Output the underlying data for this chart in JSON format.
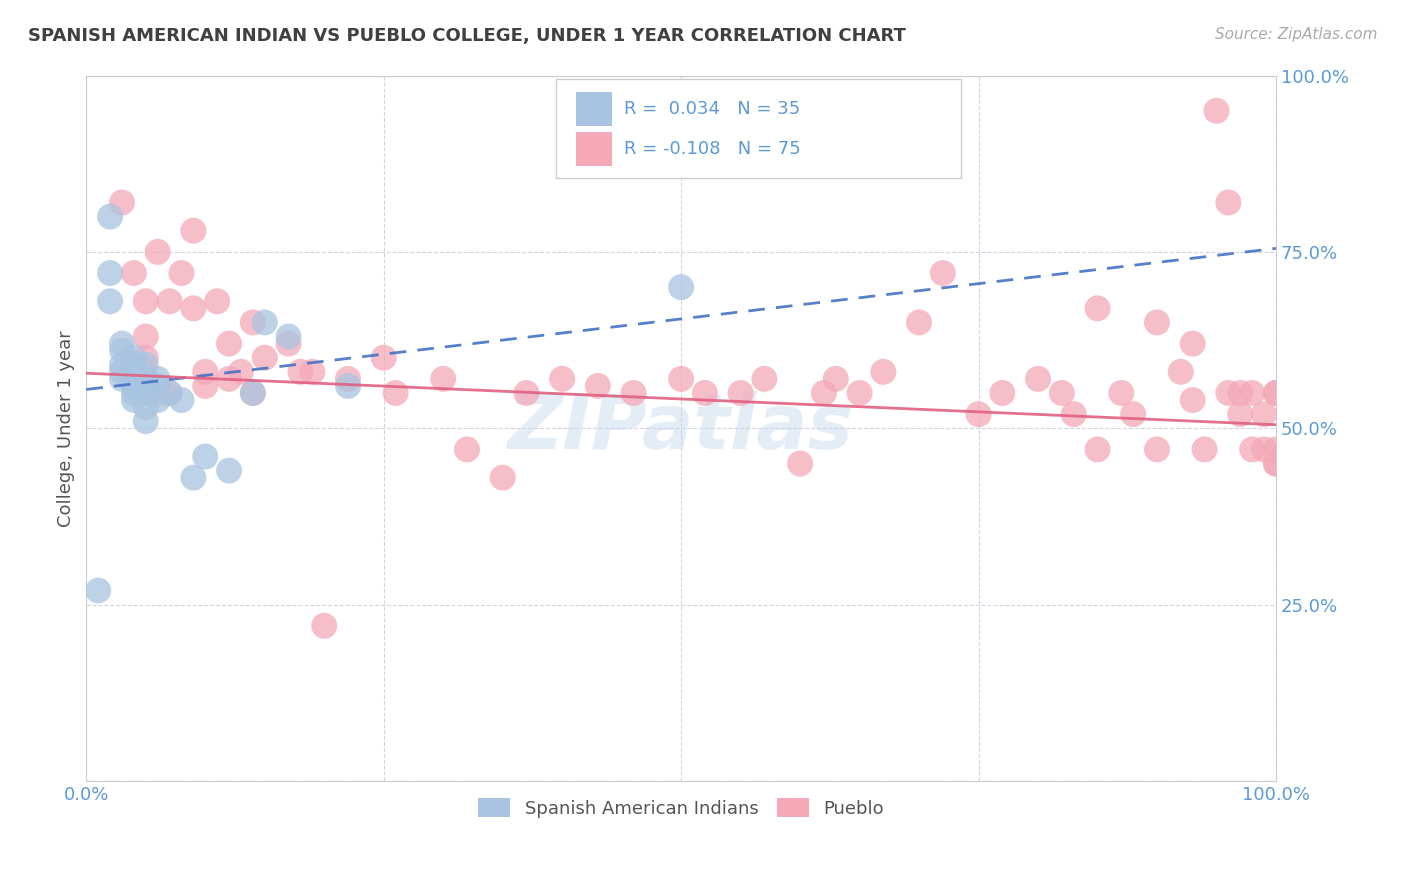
{
  "title": "SPANISH AMERICAN INDIAN VS PUEBLO COLLEGE, UNDER 1 YEAR CORRELATION CHART",
  "source": "Source: ZipAtlas.com",
  "ylabel": "College, Under 1 year",
  "r_blue": 0.034,
  "n_blue": 35,
  "r_pink": -0.108,
  "n_pink": 75,
  "legend_labels": [
    "Spanish American Indians",
    "Pueblo"
  ],
  "watermark": "ZIPatlas",
  "xlim": [
    0.0,
    1.0
  ],
  "ylim": [
    0.0,
    1.0
  ],
  "xtick_positions": [
    0.0,
    0.25,
    0.5,
    0.75,
    1.0
  ],
  "ytick_positions": [
    0.0,
    0.25,
    0.5,
    0.75,
    1.0
  ],
  "xtick_labels": [
    "0.0%",
    "",
    "",
    "",
    "100.0%"
  ],
  "ytick_labels": [
    "",
    "25.0%",
    "50.0%",
    "75.0%",
    "100.0%"
  ],
  "blue_color": "#a8c4e0",
  "pink_color": "#f4a8b8",
  "blue_line_color": "#4472c4",
  "pink_line_color": "#e06080",
  "title_color": "#404040",
  "tick_label_color": "#5b9bd5",
  "grid_color": "#d0d0e0",
  "blue_scatter_x": [
    0.01,
    0.02,
    0.02,
    0.03,
    0.03,
    0.03,
    0.03,
    0.03,
    0.04,
    0.04,
    0.04,
    0.04,
    0.04,
    0.04,
    0.04,
    0.05,
    0.05,
    0.05,
    0.05,
    0.05,
    0.05,
    0.06,
    0.06,
    0.06,
    0.07,
    0.08,
    0.09,
    0.1,
    0.12,
    0.14,
    0.15,
    0.17,
    0.22,
    0.5,
    0.02
  ],
  "blue_scatter_y": [
    0.27,
    0.72,
    0.68,
    0.62,
    0.61,
    0.59,
    0.58,
    0.57,
    0.6,
    0.59,
    0.58,
    0.57,
    0.56,
    0.55,
    0.54,
    0.59,
    0.57,
    0.56,
    0.55,
    0.53,
    0.51,
    0.57,
    0.56,
    0.54,
    0.55,
    0.54,
    0.43,
    0.46,
    0.44,
    0.55,
    0.65,
    0.63,
    0.56,
    0.7,
    0.8
  ],
  "pink_scatter_x": [
    0.03,
    0.04,
    0.05,
    0.05,
    0.05,
    0.06,
    0.06,
    0.07,
    0.07,
    0.08,
    0.09,
    0.09,
    0.1,
    0.1,
    0.11,
    0.12,
    0.12,
    0.13,
    0.14,
    0.14,
    0.15,
    0.17,
    0.18,
    0.19,
    0.2,
    0.22,
    0.25,
    0.26,
    0.3,
    0.32,
    0.35,
    0.37,
    0.4,
    0.43,
    0.46,
    0.5,
    0.52,
    0.55,
    0.57,
    0.6,
    0.62,
    0.63,
    0.65,
    0.67,
    0.7,
    0.72,
    0.75,
    0.77,
    0.8,
    0.82,
    0.83,
    0.85,
    0.85,
    0.87,
    0.88,
    0.9,
    0.9,
    0.92,
    0.93,
    0.93,
    0.94,
    0.95,
    0.96,
    0.96,
    0.97,
    0.97,
    0.98,
    0.98,
    0.99,
    0.99,
    1.0,
    1.0,
    1.0,
    1.0,
    1.0
  ],
  "pink_scatter_y": [
    0.82,
    0.72,
    0.68,
    0.63,
    0.6,
    0.75,
    0.55,
    0.68,
    0.55,
    0.72,
    0.78,
    0.67,
    0.58,
    0.56,
    0.68,
    0.62,
    0.57,
    0.58,
    0.65,
    0.55,
    0.6,
    0.62,
    0.58,
    0.58,
    0.22,
    0.57,
    0.6,
    0.55,
    0.57,
    0.47,
    0.43,
    0.55,
    0.57,
    0.56,
    0.55,
    0.57,
    0.55,
    0.55,
    0.57,
    0.45,
    0.55,
    0.57,
    0.55,
    0.58,
    0.65,
    0.72,
    0.52,
    0.55,
    0.57,
    0.55,
    0.52,
    0.47,
    0.67,
    0.55,
    0.52,
    0.65,
    0.47,
    0.58,
    0.54,
    0.62,
    0.47,
    0.95,
    0.82,
    0.55,
    0.52,
    0.55,
    0.47,
    0.55,
    0.47,
    0.52,
    0.55,
    0.47,
    0.45,
    0.55,
    0.45
  ],
  "blue_line_x0": 0.0,
  "blue_line_x1": 1.0,
  "blue_line_y0": 0.555,
  "blue_line_y1": 0.755,
  "pink_line_x0": 0.0,
  "pink_line_x1": 1.0,
  "pink_line_y0": 0.578,
  "pink_line_y1": 0.505
}
